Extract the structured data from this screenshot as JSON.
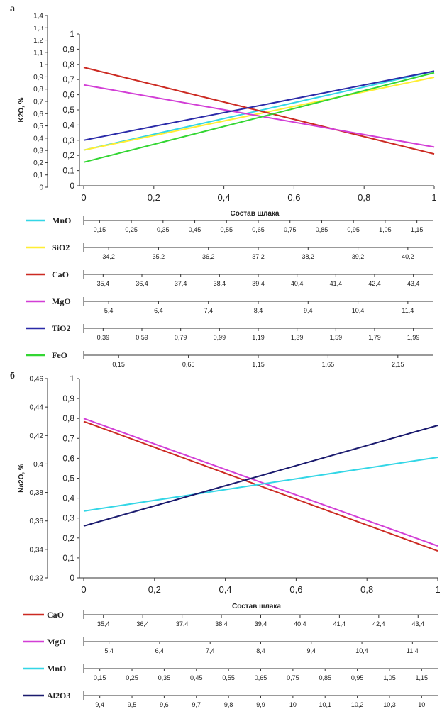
{
  "chart_data": [
    {
      "type": "line",
      "panel_label": "а",
      "ylabel": "K2O, %",
      "xlabel": "Состав шлака",
      "outer_y_ticks": [
        "0",
        "0,1",
        "0,2",
        "0,3",
        "0,4",
        "0,5",
        "0,6",
        "0,7",
        "0,8",
        "0,9",
        "1",
        "1,1",
        "1,2",
        "1,3",
        "1,4"
      ],
      "inner_y_ticks": [
        "0",
        "0,1",
        "0,2",
        "0,3",
        "0,4",
        "0,5",
        "0,6",
        "0,7",
        "0,8",
        "0,9",
        "1"
      ],
      "x_ticks": [
        "0",
        "0,2",
        "0,4",
        "0,6",
        "0,8",
        "1"
      ],
      "xlim": [
        0,
        1
      ],
      "ylim": [
        0,
        1
      ],
      "series": [
        {
          "name": "MnO",
          "color": "#33d6e6",
          "x": [
            0,
            1
          ],
          "y": [
            0.235,
            0.755
          ]
        },
        {
          "name": "SiO2",
          "color": "#ffee33",
          "x": [
            0,
            1
          ],
          "y": [
            0.235,
            0.715
          ]
        },
        {
          "name": "CaO",
          "color": "#cc2a22",
          "x": [
            0,
            1
          ],
          "y": [
            0.78,
            0.21
          ]
        },
        {
          "name": "MgO",
          "color": "#d23ed6",
          "x": [
            0,
            1
          ],
          "y": [
            0.665,
            0.255
          ]
        },
        {
          "name": "TiO2",
          "color": "#2a2aa8",
          "x": [
            0,
            1
          ],
          "y": [
            0.3,
            0.755
          ]
        },
        {
          "name": "FeO",
          "color": "#33d633",
          "x": [
            0,
            1
          ],
          "y": [
            0.155,
            0.745
          ]
        }
      ],
      "scales": [
        {
          "name": "MnO",
          "color": "#33d6e6",
          "ticks": [
            "0,15",
            "0,25",
            "0,35",
            "0,45",
            "0,55",
            "0,65",
            "0,75",
            "0,85",
            "0,95",
            "1,05",
            "1,15"
          ]
        },
        {
          "name": "SiO2",
          "color": "#ffee33",
          "ticks": [
            "34,2",
            "35,2",
            "36,2",
            "37,2",
            "38,2",
            "39,2",
            "40,2"
          ]
        },
        {
          "name": "CaO",
          "color": "#cc2a22",
          "ticks": [
            "35,4",
            "36,4",
            "37,4",
            "38,4",
            "39,4",
            "40,4",
            "41,4",
            "42,4",
            "43,4"
          ]
        },
        {
          "name": "MgO",
          "color": "#d23ed6",
          "ticks": [
            "5,4",
            "6,4",
            "7,4",
            "8,4",
            "9,4",
            "10,4",
            "11,4"
          ]
        },
        {
          "name": "TiO2",
          "color": "#2a2aa8",
          "ticks": [
            "0,39",
            "0,59",
            "0,79",
            "0,99",
            "1,19",
            "1,39",
            "1,59",
            "1,79",
            "1,99"
          ]
        },
        {
          "name": "FeO",
          "color": "#33d633",
          "ticks": [
            "0,15",
            "0,65",
            "1,15",
            "1,65",
            "2,15"
          ]
        }
      ]
    },
    {
      "type": "line",
      "panel_label": "б",
      "ylabel": "Na2O, %",
      "xlabel": "Состав шлака",
      "outer_y_ticks": [
        "0,32",
        "0,34",
        "0,36",
        "0,38",
        "0,4",
        "0,42",
        "0,44",
        "0,46"
      ],
      "inner_y_ticks": [
        "0",
        "0,1",
        "0,2",
        "0,3",
        "0,4",
        "0,5",
        "0,6",
        "0,7",
        "0,8",
        "0,9",
        "1"
      ],
      "x_ticks": [
        "0",
        "0,2",
        "0,4",
        "0,6",
        "0,8",
        "1"
      ],
      "xlim": [
        0,
        1
      ],
      "ylim": [
        0,
        1
      ],
      "series": [
        {
          "name": "CaO",
          "color": "#cc2a22",
          "x": [
            0,
            1
          ],
          "y": [
            0.785,
            0.135
          ]
        },
        {
          "name": "MgO",
          "color": "#d23ed6",
          "x": [
            0,
            1
          ],
          "y": [
            0.8,
            0.16
          ]
        },
        {
          "name": "MnO",
          "color": "#33d6e6",
          "x": [
            0,
            1
          ],
          "y": [
            0.335,
            0.605
          ]
        },
        {
          "name": "Al2O3",
          "color": "#1a1a6e",
          "x": [
            0,
            1
          ],
          "y": [
            0.26,
            0.765
          ]
        }
      ],
      "scales": [
        {
          "name": "CaO",
          "color": "#cc2a22",
          "ticks": [
            "35,4",
            "36,4",
            "37,4",
            "38,4",
            "39,4",
            "40,4",
            "41,4",
            "42,4",
            "43,4"
          ]
        },
        {
          "name": "MgO",
          "color": "#d23ed6",
          "ticks": [
            "5,4",
            "6,4",
            "7,4",
            "8,4",
            "9,4",
            "10,4",
            "11,4"
          ]
        },
        {
          "name": "MnO",
          "color": "#33d6e6",
          "ticks": [
            "0,15",
            "0,25",
            "0,35",
            "0,45",
            "0,55",
            "0,65",
            "0,75",
            "0,85",
            "0,95",
            "1,05",
            "1,15"
          ]
        },
        {
          "name": "Al2O3",
          "color": "#1a1a6e",
          "ticks": [
            "9,4",
            "9,5",
            "9,6",
            "9,7",
            "9,8",
            "9,9",
            "10",
            "10,1",
            "10,2",
            "10,3",
            "10"
          ]
        }
      ]
    }
  ]
}
